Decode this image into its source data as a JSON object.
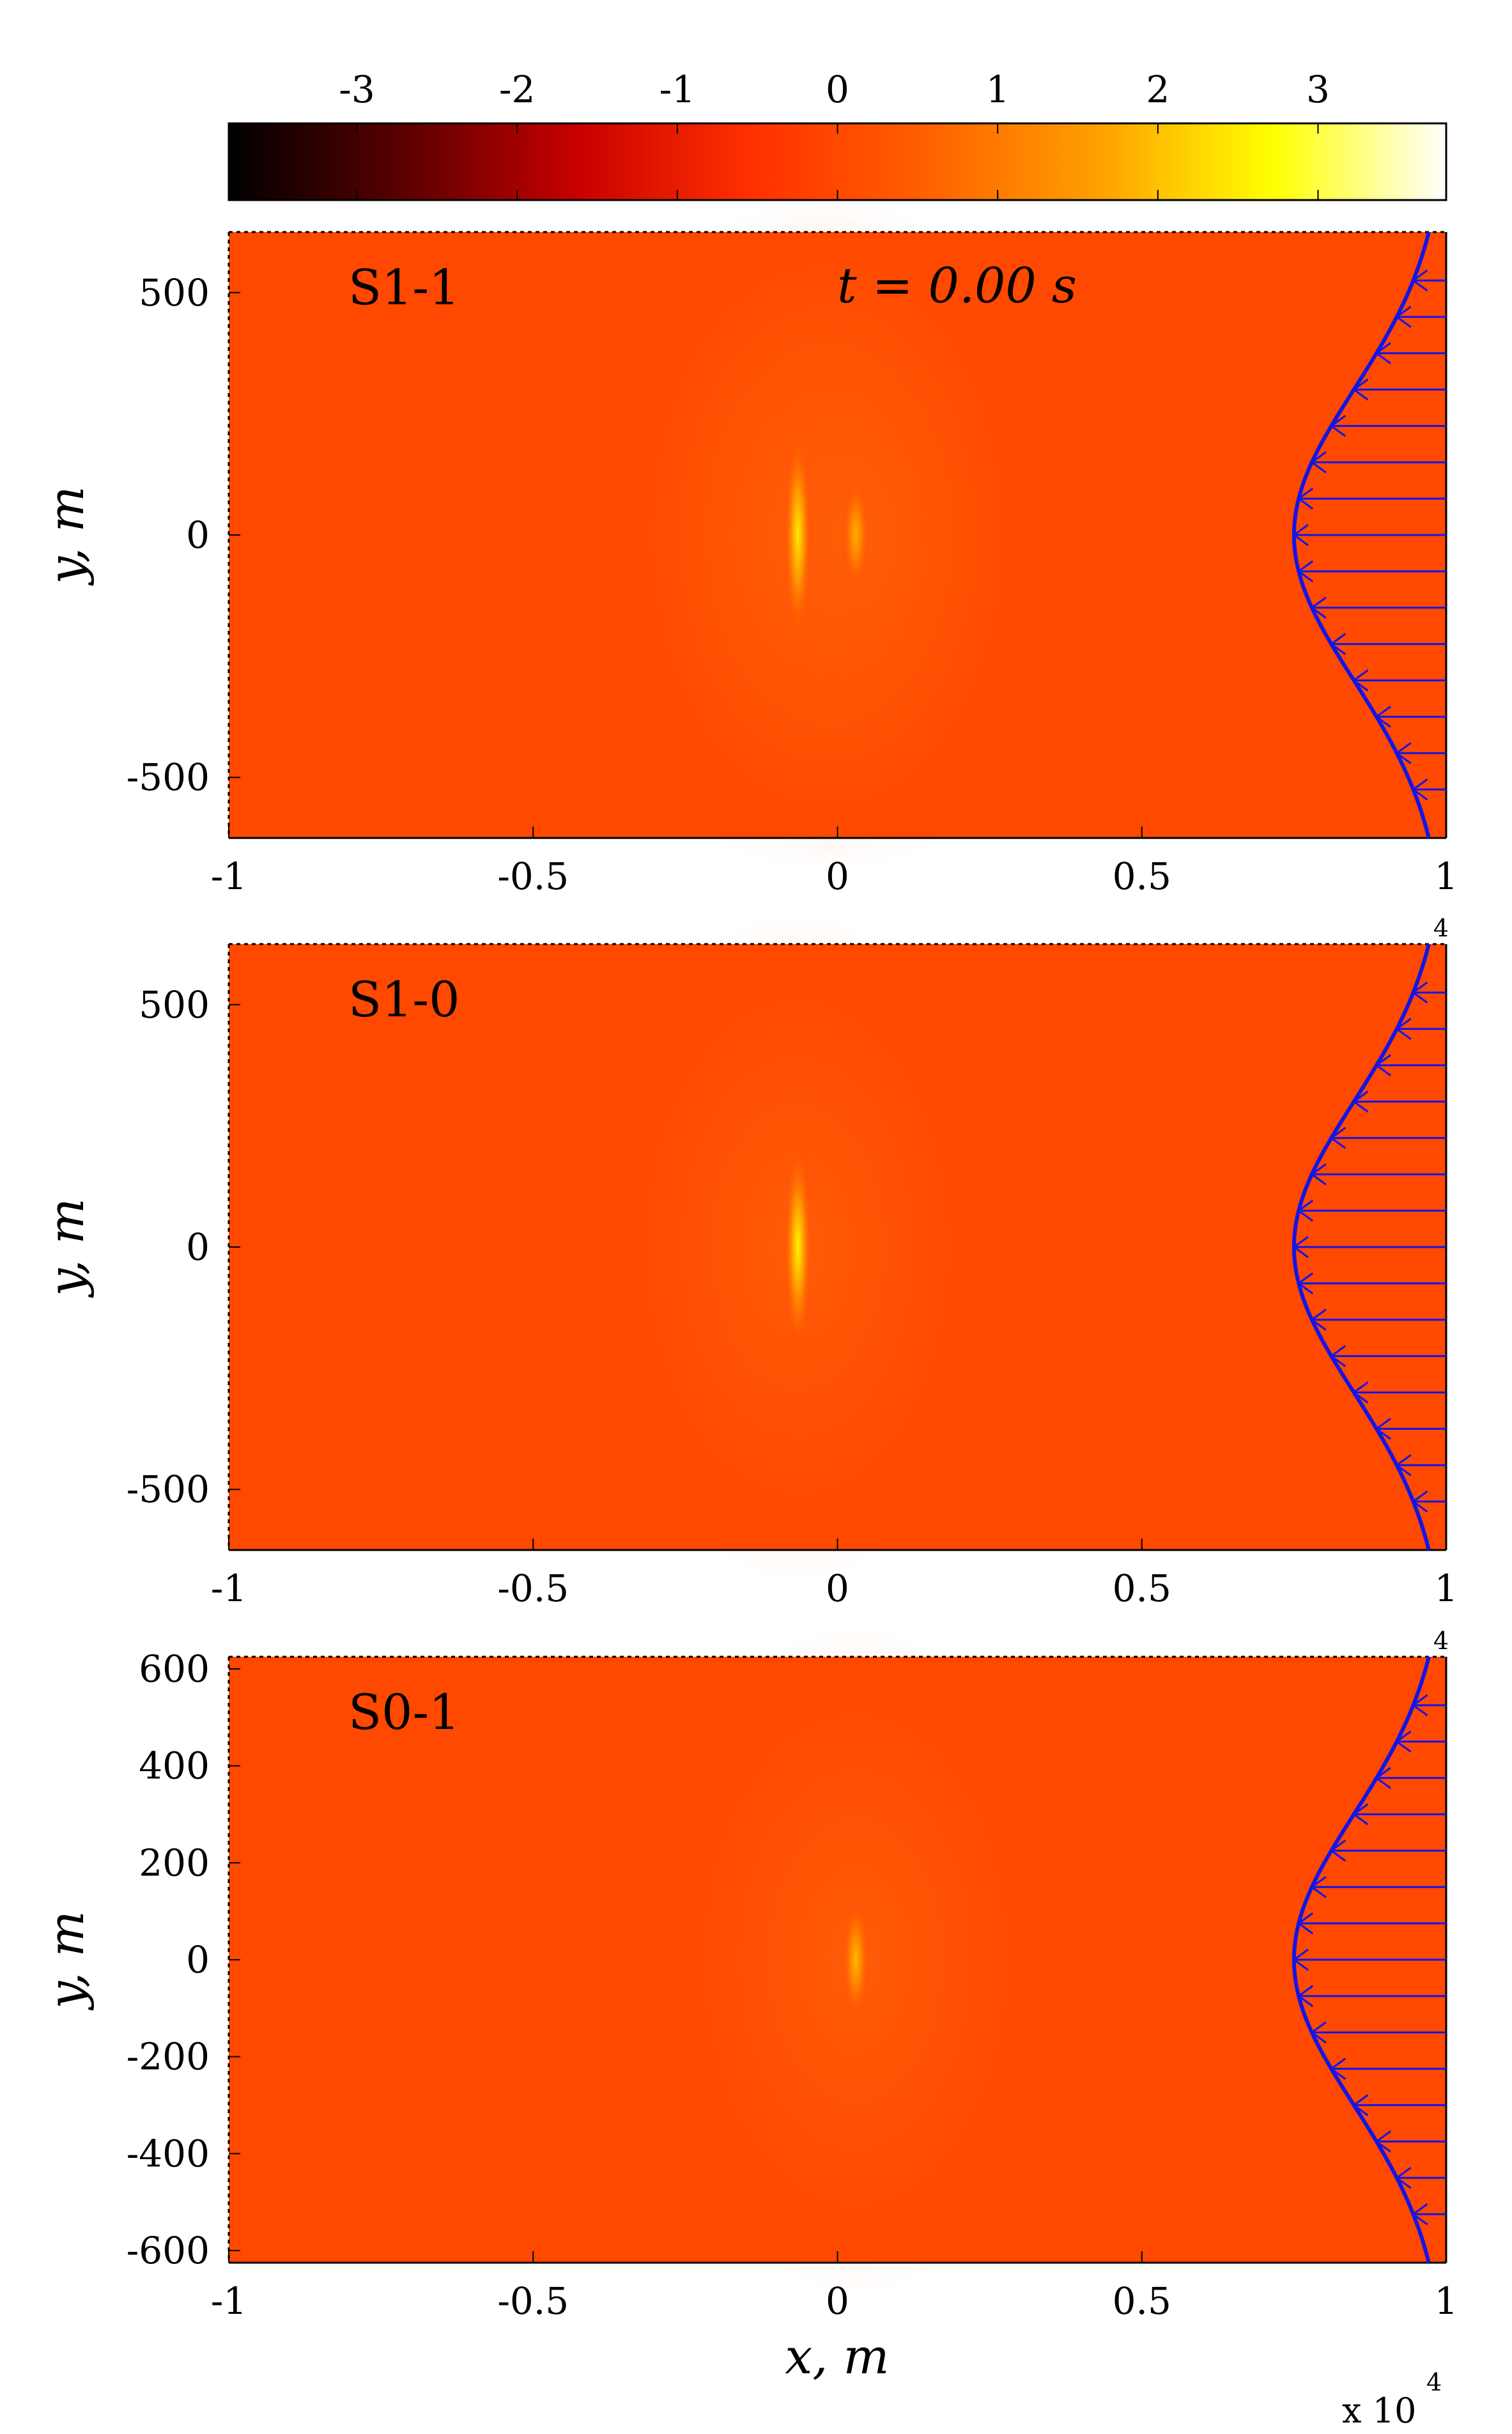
{
  "colorbar": {
    "ticks": [
      {
        "value": -3,
        "label": "-3"
      },
      {
        "value": -2,
        "label": "-2"
      },
      {
        "value": -1,
        "label": "-1"
      },
      {
        "value": 0,
        "label": "0"
      },
      {
        "value": 1,
        "label": "1"
      },
      {
        "value": 2,
        "label": "2"
      },
      {
        "value": 3,
        "label": "3"
      }
    ],
    "range": [
      -3.8,
      3.8
    ],
    "colormap": "hot",
    "colors": [
      "#000000",
      "#5a0000",
      "#c80000",
      "#ff3000",
      "#ff6000",
      "#ffa000",
      "#ffff00",
      "#ffffff"
    ]
  },
  "time_label": "t = 0.00 s",
  "x_multiplier": "x 10",
  "x_multiplier_exp": "4",
  "xlabel": "x, m",
  "ylabel": "y, m",
  "background_color": "#ff6000",
  "line_color": "#1414e6",
  "chart_data": [
    {
      "type": "heatmap",
      "panel_label": "S1-1",
      "xlim": [
        -1,
        1
      ],
      "x_ticks": [
        {
          "v": -1,
          "label": "-1"
        },
        {
          "v": -0.5,
          "label": "-0.5"
        },
        {
          "v": 0,
          "label": "0"
        },
        {
          "v": 0.5,
          "label": "0.5"
        },
        {
          "v": 1,
          "label": "1"
        }
      ],
      "ylim": [
        -625,
        625
      ],
      "y_ticks": [
        {
          "v": 500,
          "label": "500"
        },
        {
          "v": 0,
          "label": "0"
        },
        {
          "v": -500,
          "label": "-500"
        }
      ],
      "ylabel": "y, m",
      "exponent_label": "4",
      "background_value": 0,
      "hotspots": [
        {
          "x": -0.065,
          "y": 0,
          "value": 2.5,
          "half_height": 220
        },
        {
          "x": 0.03,
          "y": 0,
          "value": 1.8,
          "half_height": 120
        }
      ],
      "profile": {
        "amplitude": 0.25,
        "sigma": 300
      }
    },
    {
      "type": "heatmap",
      "panel_label": "S1-0",
      "xlim": [
        -1,
        1
      ],
      "x_ticks": [
        {
          "v": -1,
          "label": "-1"
        },
        {
          "v": -0.5,
          "label": "-0.5"
        },
        {
          "v": 0,
          "label": "0"
        },
        {
          "v": 0.5,
          "label": "0.5"
        },
        {
          "v": 1,
          "label": "1"
        }
      ],
      "ylim": [
        -625,
        625
      ],
      "y_ticks": [
        {
          "v": 500,
          "label": "500"
        },
        {
          "v": 0,
          "label": "0"
        },
        {
          "v": -500,
          "label": "-500"
        }
      ],
      "ylabel": "y, m",
      "exponent_label": "4",
      "background_value": 0,
      "hotspots": [
        {
          "x": -0.065,
          "y": 0,
          "value": 2.6,
          "half_height": 220
        }
      ],
      "profile": {
        "amplitude": 0.25,
        "sigma": 300
      }
    },
    {
      "type": "heatmap",
      "panel_label": "S0-1",
      "xlim": [
        -1,
        1
      ],
      "x_ticks": [
        {
          "v": -1,
          "label": "-1"
        },
        {
          "v": -0.5,
          "label": "-0.5"
        },
        {
          "v": 0,
          "label": "0"
        },
        {
          "v": 0.5,
          "label": "0.5"
        },
        {
          "v": 1,
          "label": "1"
        }
      ],
      "ylim": [
        -625,
        625
      ],
      "y_ticks": [
        {
          "v": 600,
          "label": "600"
        },
        {
          "v": 400,
          "label": "400"
        },
        {
          "v": 200,
          "label": "200"
        },
        {
          "v": 0,
          "label": "0"
        },
        {
          "v": -200,
          "label": "-200"
        },
        {
          "v": -400,
          "label": "-400"
        },
        {
          "v": -600,
          "label": "-600"
        }
      ],
      "ylabel": "y, m",
      "xlabel": "x, m",
      "exponent_label": "4",
      "background_value": 0,
      "hotspots": [
        {
          "x": 0.03,
          "y": 0,
          "value": 1.9,
          "half_height": 130
        }
      ],
      "profile": {
        "amplitude": 0.25,
        "sigma": 300
      }
    }
  ]
}
